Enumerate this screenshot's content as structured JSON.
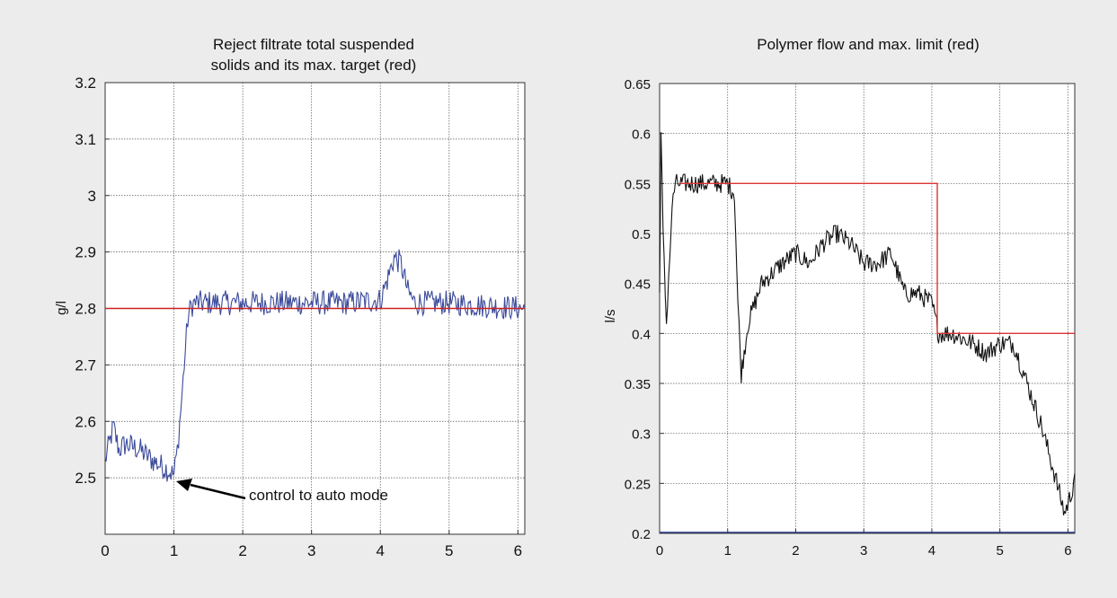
{
  "chart_data": [
    {
      "type": "line",
      "title_lines": [
        "Reject filtrate total suspended",
        "solids and its max. target (red)"
      ],
      "xlabel": "",
      "ylabel": "g/l",
      "xlim": [
        0,
        6.1
      ],
      "ylim": [
        2.4,
        3.2
      ],
      "xticks": [
        0,
        1,
        2,
        3,
        4,
        5,
        6
      ],
      "yticks": [
        2.5,
        2.6,
        2.7,
        2.8,
        2.9,
        3,
        3.1,
        3.2
      ],
      "ytick_labels": [
        "2.5",
        "2.6",
        "2.7",
        "2.8",
        "2.9",
        "3",
        "3.1",
        "3.2"
      ],
      "grid": true,
      "annotation": {
        "text": "control to auto mode",
        "x": 1.05,
        "y": 2.5
      },
      "series": [
        {
          "name": "",
          "color": "#3b4a9a",
          "noise": 0.022,
          "x": [
            0,
            0.12,
            0.2,
            0.3,
            0.5,
            0.7,
            0.9,
            1.0,
            1.05,
            1.1,
            1.15,
            1.2,
            1.25,
            1.3,
            1.5,
            2,
            2.5,
            3,
            3.5,
            4.0,
            4.1,
            4.2,
            4.3,
            4.4,
            4.5,
            5,
            5.5,
            6.1
          ],
          "y": [
            2.53,
            2.59,
            2.55,
            2.56,
            2.55,
            2.53,
            2.515,
            2.505,
            2.55,
            2.62,
            2.7,
            2.78,
            2.805,
            2.81,
            2.81,
            2.81,
            2.81,
            2.81,
            2.81,
            2.815,
            2.85,
            2.89,
            2.88,
            2.83,
            2.81,
            2.81,
            2.805,
            2.8
          ]
        },
        {
          "name": "",
          "color": "#cc2222",
          "noise": 0,
          "x": [
            0,
            6.1
          ],
          "y": [
            2.8,
            2.8
          ]
        }
      ]
    },
    {
      "type": "line",
      "title_lines": [
        "Polymer flow and max. limit (red)"
      ],
      "xlabel": "",
      "ylabel": "l/s",
      "xlim": [
        0,
        6.1
      ],
      "ylim": [
        0.2,
        0.65
      ],
      "xticks": [
        0,
        1,
        2,
        3,
        4,
        5,
        6
      ],
      "yticks": [
        0.2,
        0.25,
        0.3,
        0.35,
        0.4,
        0.45,
        0.5,
        0.55,
        0.6,
        0.65
      ],
      "ytick_labels": [
        "0.2",
        "0.25",
        "0.3",
        "0.35",
        "0.4",
        "0.45",
        "0.5",
        "0.55",
        "0.6",
        "0.65"
      ],
      "grid": true,
      "series": [
        {
          "name": "",
          "color": "#111111",
          "noise": 0.01,
          "x": [
            0,
            0.02,
            0.05,
            0.1,
            0.15,
            0.2,
            0.25,
            0.3,
            0.5,
            0.8,
            1.0,
            1.1,
            1.15,
            1.2,
            1.3,
            1.5,
            1.8,
            2.0,
            2.2,
            2.4,
            2.6,
            2.8,
            3.0,
            3.2,
            3.4,
            3.6,
            3.8,
            4.0,
            4.1,
            4.3,
            4.6,
            4.8,
            5.0,
            5.2,
            5.4,
            5.6,
            5.8,
            5.95,
            6.05,
            6.1
          ],
          "y": [
            0.44,
            0.6,
            0.5,
            0.41,
            0.48,
            0.54,
            0.55,
            0.55,
            0.55,
            0.55,
            0.55,
            0.54,
            0.43,
            0.36,
            0.41,
            0.45,
            0.47,
            0.48,
            0.47,
            0.49,
            0.5,
            0.49,
            0.47,
            0.47,
            0.48,
            0.44,
            0.44,
            0.43,
            0.4,
            0.4,
            0.39,
            0.38,
            0.39,
            0.39,
            0.35,
            0.31,
            0.26,
            0.22,
            0.24,
            0.26
          ]
        },
        {
          "name": "",
          "color": "#dd3333",
          "noise": 0,
          "x": [
            0.3,
            4.08,
            4.08,
            6.1
          ],
          "y": [
            0.55,
            0.55,
            0.4,
            0.4
          ]
        },
        {
          "name": "",
          "color": "#2a3a8a",
          "noise": 0,
          "x": [
            0,
            6.1
          ],
          "y": [
            0.201,
            0.201
          ]
        }
      ]
    }
  ]
}
